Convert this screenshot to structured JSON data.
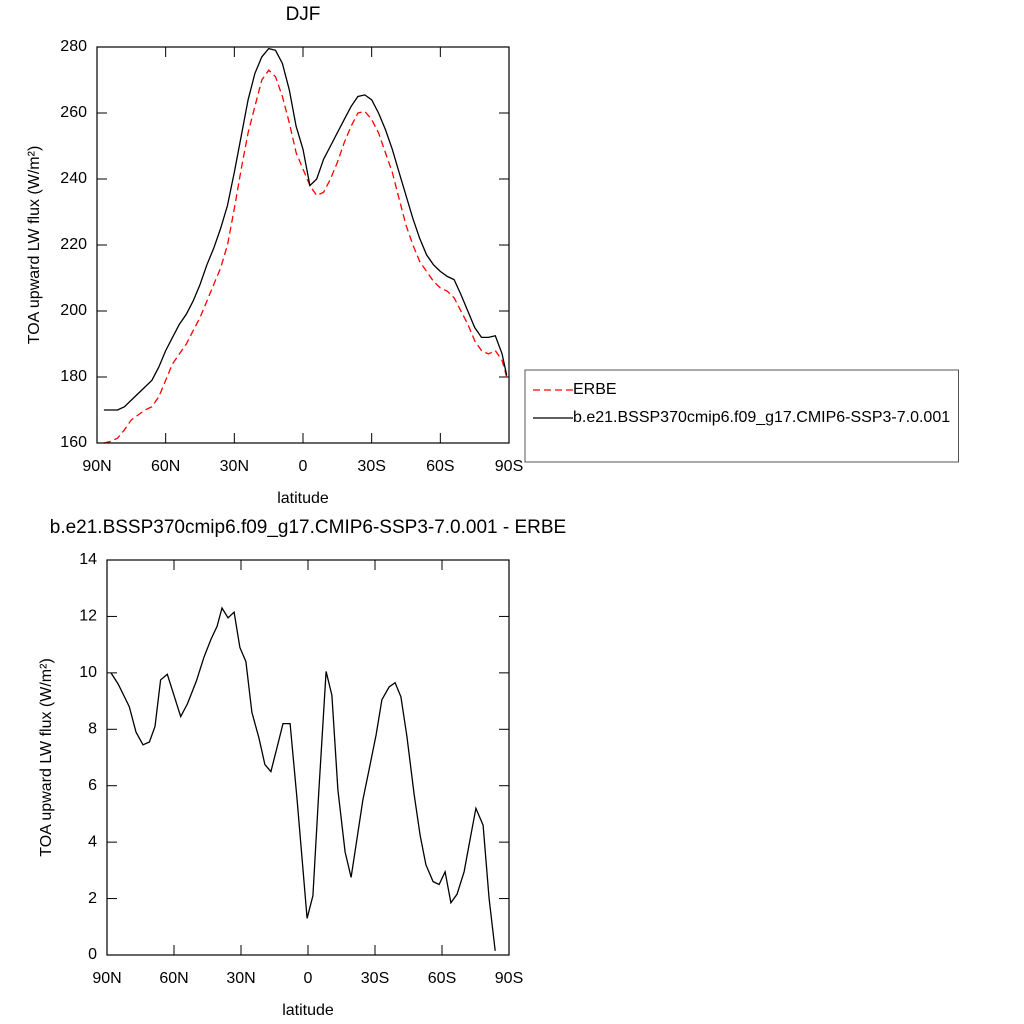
{
  "chart_data": [
    {
      "type": "line",
      "title": "DJF",
      "xlabel": "latitude",
      "ylabel": "TOA upward LW flux (W/m²)",
      "x": [
        87,
        84,
        81,
        78,
        75,
        72,
        69,
        66,
        63,
        60,
        57,
        54,
        51,
        48,
        45,
        42,
        39,
        36,
        33,
        30,
        27,
        24,
        21,
        18,
        15,
        12,
        9,
        6,
        3,
        0,
        -3,
        -6,
        -9,
        -12,
        -15,
        -18,
        -21,
        -24,
        -27,
        -30,
        -33,
        -36,
        -39,
        -42,
        -45,
        -48,
        -51,
        -54,
        -57,
        -60,
        -63,
        -66,
        -69,
        -72,
        -75,
        -78,
        -81,
        -84,
        -87,
        -89
      ],
      "series": [
        {
          "name": "ERBE",
          "color": "#ff0000",
          "dash": true,
          "values": [
            160,
            160.5,
            161.5,
            164,
            167,
            168.5,
            170,
            171,
            174,
            179,
            184,
            187,
            190,
            194,
            198,
            203,
            208,
            213,
            220,
            231,
            243,
            254,
            262,
            270,
            273,
            271,
            265,
            257,
            248,
            243,
            238,
            235,
            236,
            240,
            245,
            251,
            256,
            260,
            260.5,
            258,
            254,
            248,
            242,
            234,
            226,
            220,
            215,
            212,
            209,
            207,
            206,
            204,
            200,
            196,
            191,
            188,
            187,
            188,
            185,
            180
          ]
        },
        {
          "name": "b.e21.BSSP370cmip6.f09_g17.CMIP6-SSP3-7.0.001",
          "color": "#000000",
          "dash": false,
          "values": [
            170,
            170,
            170,
            171,
            173,
            175,
            177,
            179,
            183,
            188,
            192,
            196,
            199,
            203,
            208,
            214,
            219,
            225,
            232,
            242,
            253,
            264,
            272,
            277,
            279.5,
            279,
            275,
            267,
            256,
            249,
            238,
            240,
            246,
            250,
            254,
            258,
            262,
            265,
            265.5,
            264,
            260,
            255,
            249,
            242,
            235,
            228,
            222,
            217,
            214,
            212,
            210.5,
            209.5,
            205,
            200,
            195,
            192,
            192,
            192.5,
            187,
            180.5
          ]
        }
      ],
      "xlim": [
        90,
        -90
      ],
      "xticks": [
        {
          "value": 90,
          "label": "90N"
        },
        {
          "value": 60,
          "label": "60N"
        },
        {
          "value": 30,
          "label": "30N"
        },
        0,
        {
          "value": -30,
          "label": "30S"
        },
        {
          "value": -60,
          "label": "60S"
        },
        {
          "value": -90,
          "label": "90S"
        }
      ],
      "ylim": [
        160,
        280
      ],
      "yticks": [
        160,
        180,
        200,
        220,
        240,
        260,
        280
      ],
      "legend": "outside-right"
    },
    {
      "type": "line",
      "title": "b.e21.BSSP370cmip6.f09_g17.CMIP6-SSP3-7.0.001 - ERBE",
      "xlabel": "latitude",
      "ylabel": "TOA upward LW flux (W/m²)",
      "x": [
        88.2,
        85,
        80,
        77,
        73.9,
        71,
        68.5,
        66,
        63,
        60.4,
        57,
        54,
        50,
        46.6,
        43.4,
        40.7,
        38.5,
        35.8,
        33.1,
        30.5,
        27.8,
        25.1,
        22,
        19.3,
        16.6,
        13.9,
        11.2,
        8,
        4.9,
        0.4,
        -2.2,
        -4.9,
        -8.1,
        -10.7,
        -13.4,
        -16.6,
        -19.3,
        -21.9,
        -24.6,
        -27.8,
        -30.5,
        -33.1,
        -36.3,
        -39,
        -41.6,
        -44.3,
        -47.5,
        -50.2,
        -52.8,
        -56,
        -58.7,
        -61.4,
        -64,
        -66.7,
        -69.9,
        -72.6,
        -75.2,
        -78.4,
        -81.1,
        -83.8
      ],
      "series": [
        {
          "name": "b.e21.BSSP370cmip6.f09_g17.CMIP6-SSP3-7.0.001 - ERBE",
          "color": "#000000",
          "dash": false,
          "values": [
            10,
            9.6,
            8.8,
            7.9,
            7.45,
            7.55,
            8.1,
            9.75,
            9.95,
            9.3,
            8.45,
            8.9,
            9.7,
            10.55,
            11.2,
            11.65,
            12.3,
            11.95,
            12.15,
            10.9,
            10.4,
            8.6,
            7.7,
            6.75,
            6.5,
            7.35,
            8.2,
            8.2,
            5.5,
            1.3,
            2.1,
            5.85,
            10.05,
            9.2,
            5.85,
            3.65,
            2.75,
            4.1,
            5.5,
            6.75,
            7.8,
            9.05,
            9.5,
            9.65,
            9.15,
            7.75,
            5.7,
            4.25,
            3.2,
            2.6,
            2.5,
            2.95,
            1.85,
            2.15,
            2.95,
            4.1,
            5.2,
            4.6,
            2,
            0.15
          ]
        }
      ],
      "xlim": [
        90,
        -90
      ],
      "xticks": [
        {
          "value": 90,
          "label": "90N"
        },
        {
          "value": 60,
          "label": "60N"
        },
        {
          "value": 30,
          "label": "30N"
        },
        0,
        {
          "value": -30,
          "label": "30S"
        },
        {
          "value": -60,
          "label": "60S"
        },
        {
          "value": -90,
          "label": "90S"
        }
      ],
      "ylim": [
        0,
        14
      ],
      "yticks": [
        0,
        2,
        4,
        6,
        8,
        10,
        12,
        14
      ]
    }
  ]
}
